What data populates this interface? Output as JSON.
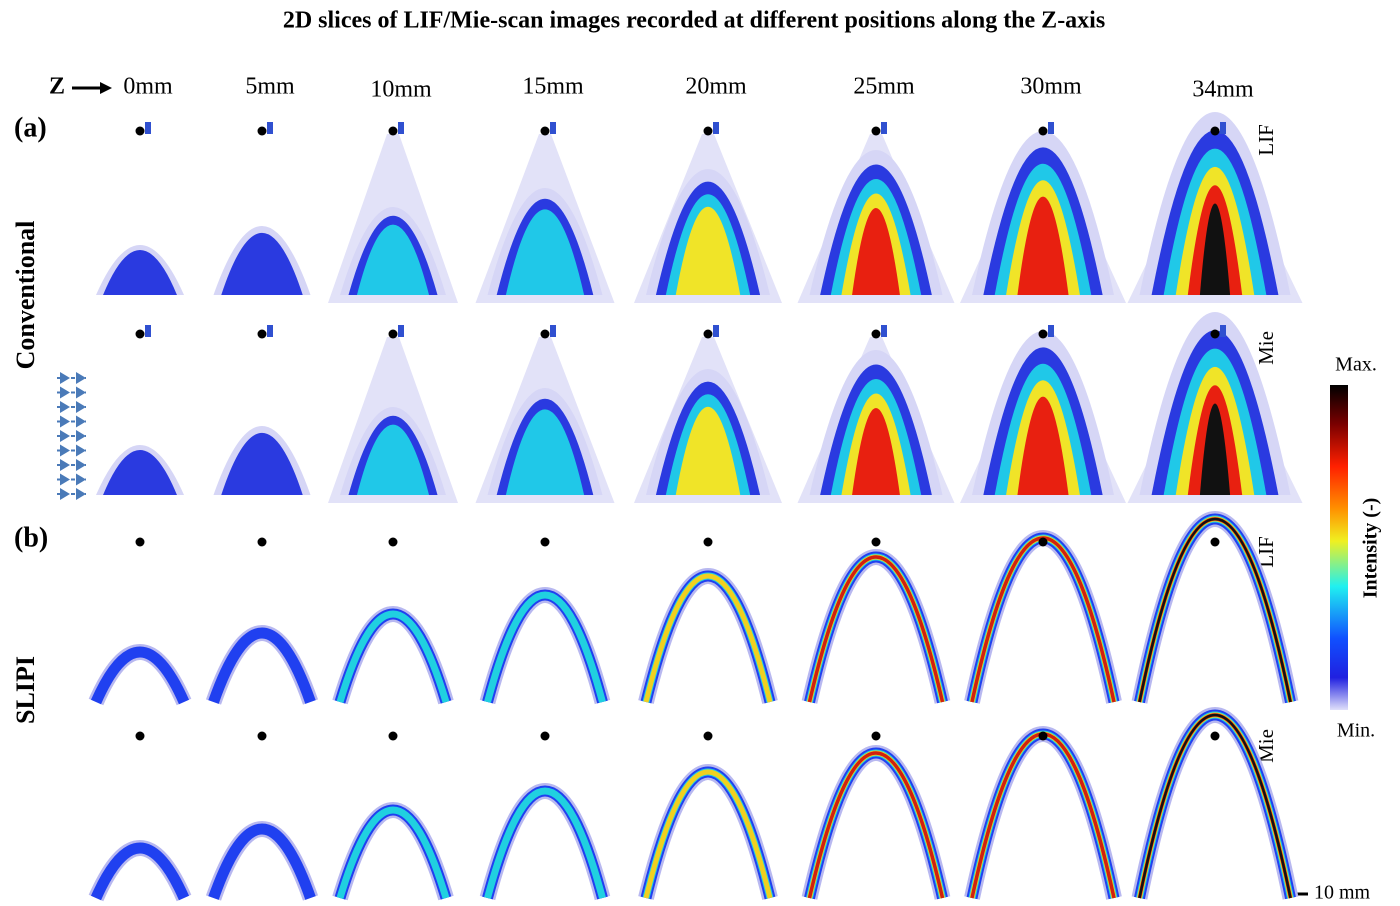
{
  "title": "2D slices of LIF/Mie-scan images recorded at different positions along the Z-axis",
  "axis_label": "Z",
  "positions": [
    "0mm",
    "5mm",
    "10mm",
    "15mm",
    "20mm",
    "25mm",
    "30mm",
    "34mm"
  ],
  "panels": [
    {
      "label": "(a)",
      "method": "Conventional",
      "rows": [
        "LIF",
        "Mie"
      ]
    },
    {
      "label": "(b)",
      "method": "SLIPI",
      "rows": [
        "LIF",
        "Mie"
      ]
    }
  ],
  "colorbar": {
    "max": "Max.",
    "min": "Min.",
    "label": "Intensity (-)"
  },
  "scale_bar": "10 mm"
}
